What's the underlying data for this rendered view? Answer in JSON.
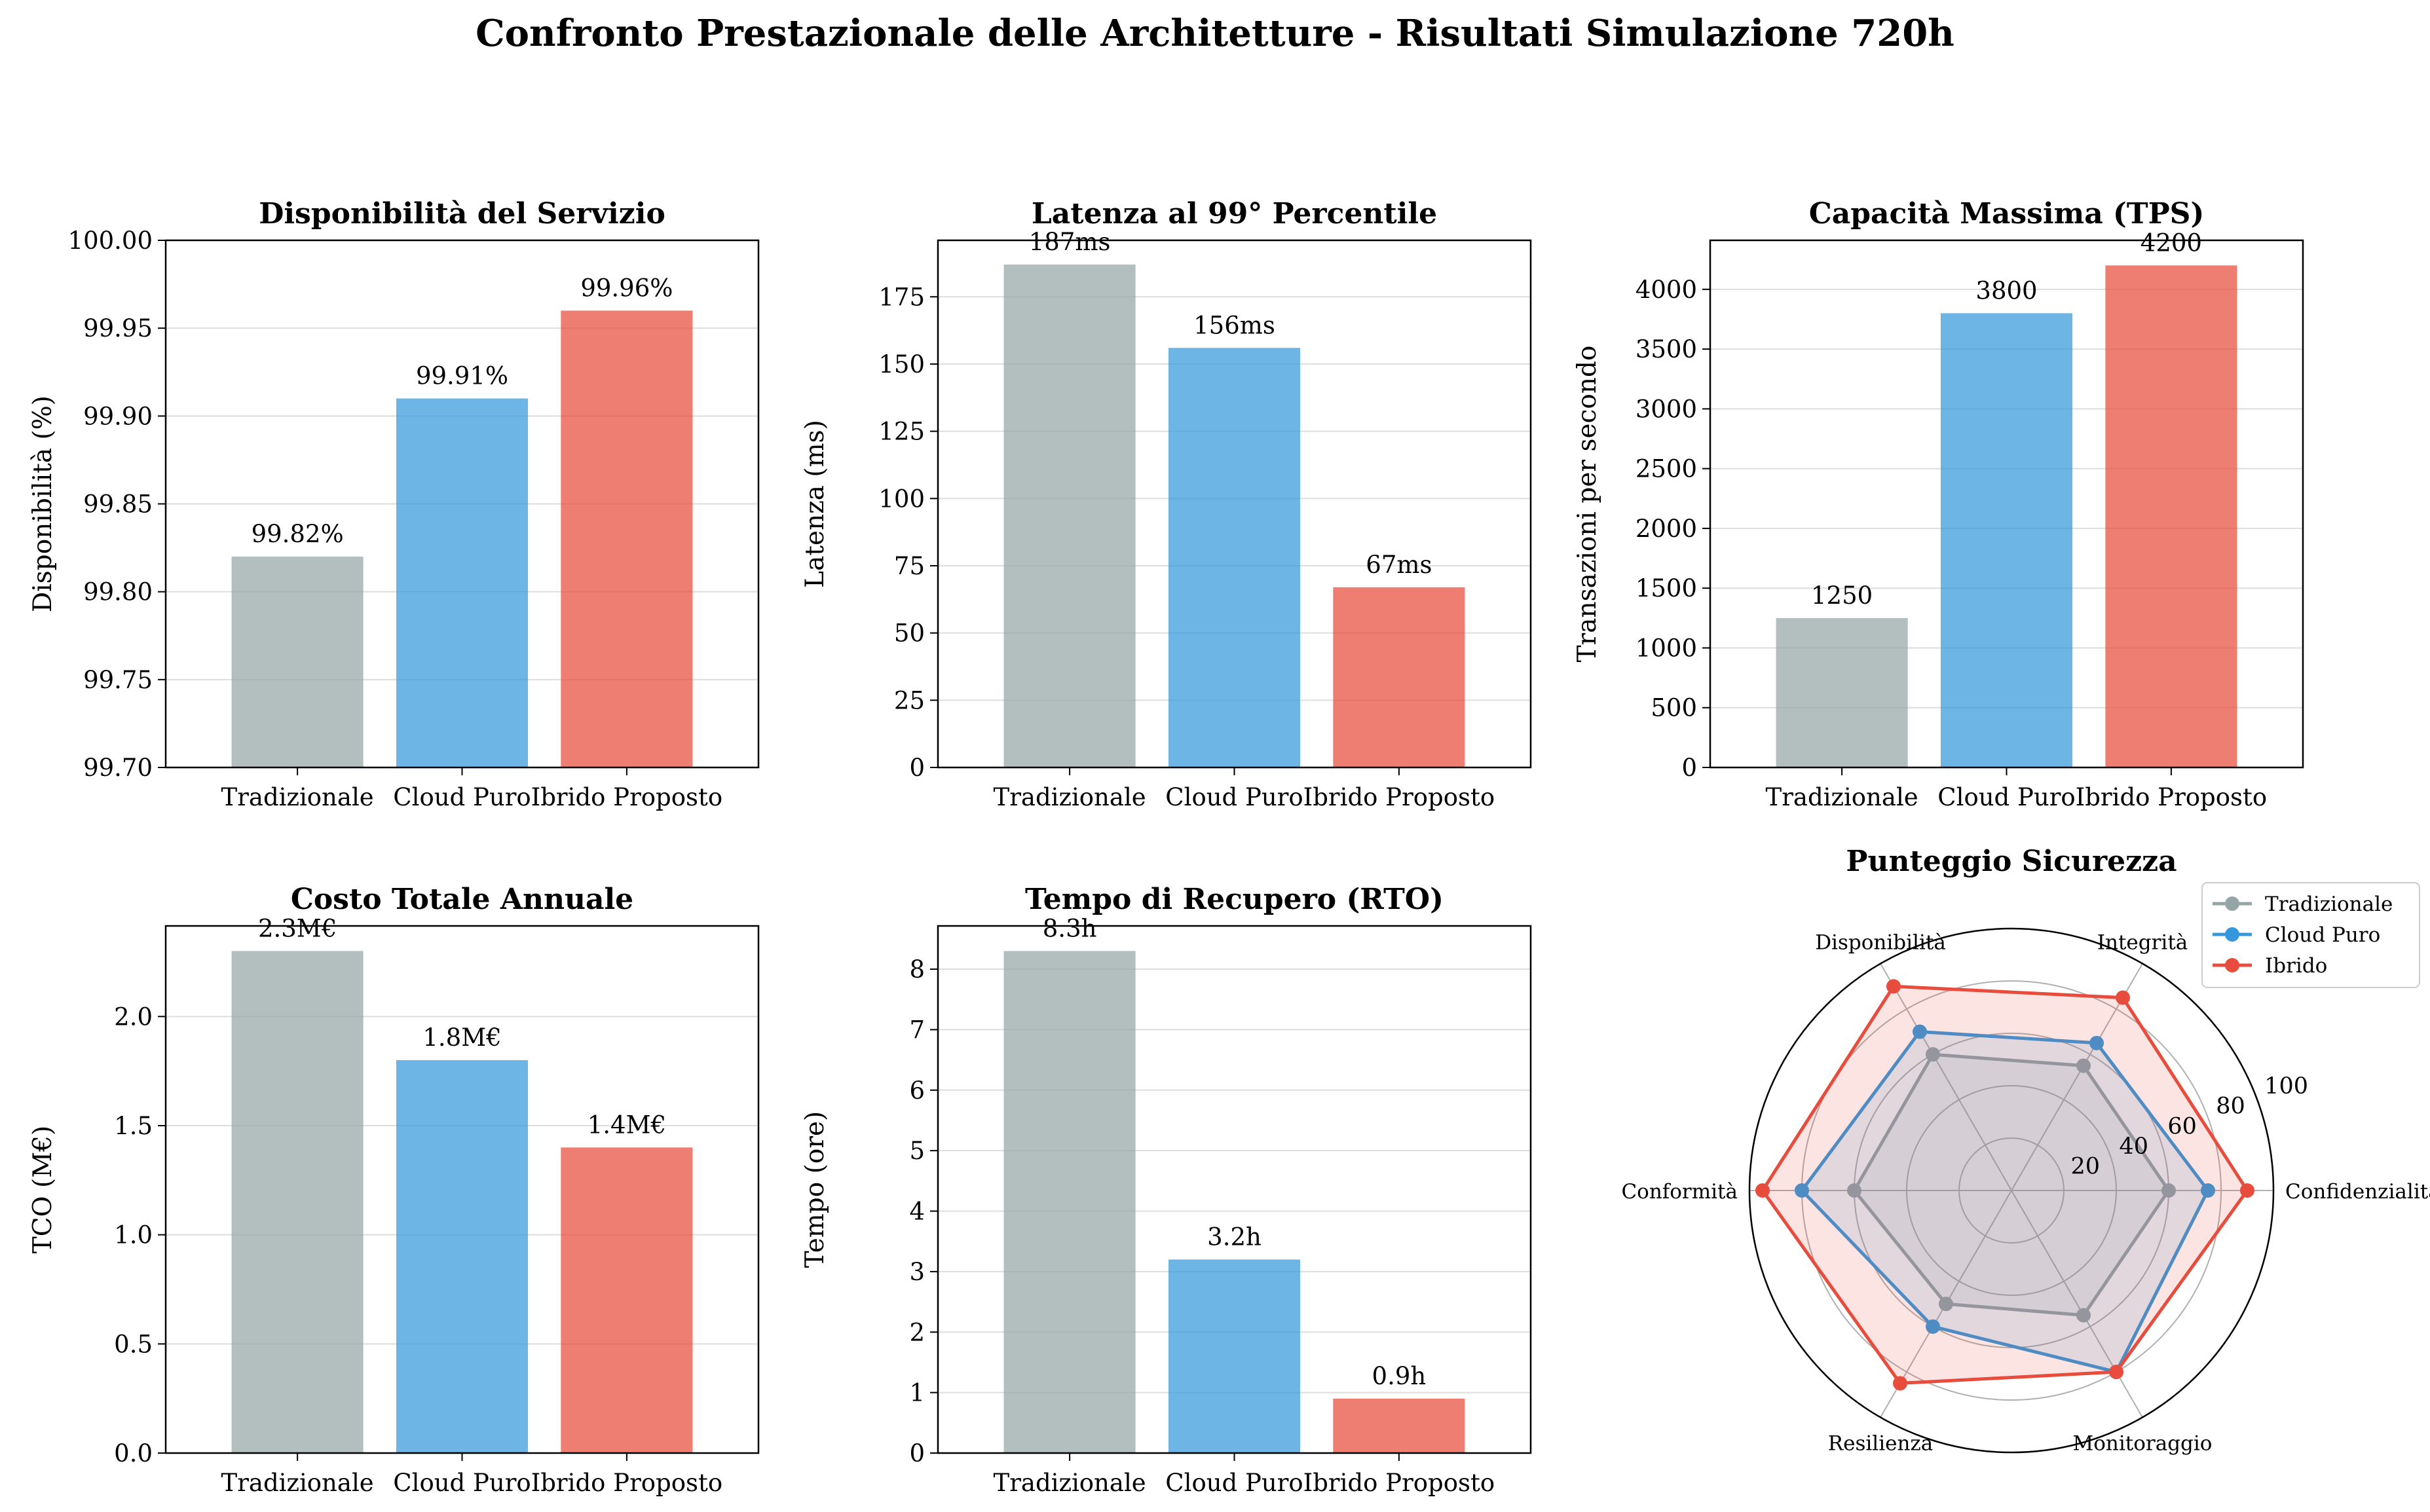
{
  "suptitle": "Confronto Prestazionale delle Architetture - Risultati Simulazione 720h",
  "colors": {
    "tradizionale": "#95a5a6",
    "cloud": "#3498db",
    "ibrido": "#e74c3c",
    "grid": "#dddddd"
  },
  "chart_data": [
    {
      "type": "bar",
      "title": "Disponibilità del Servizio",
      "categories": [
        "Tradizionale",
        "Cloud Puro",
        "Ibrido Proposto"
      ],
      "values": [
        99.82,
        99.91,
        99.96
      ],
      "value_labels": [
        "99.82%",
        "99.91%",
        "99.96%"
      ],
      "ylabel": "Disponibilità (%)",
      "ylim": [
        99.7,
        100.0
      ],
      "yticks": [
        99.7,
        99.75,
        99.8,
        99.85,
        99.9,
        99.95,
        100.0
      ],
      "ytick_labels": [
        "99.70",
        "99.75",
        "99.80",
        "99.85",
        "99.90",
        "99.95",
        "100.00"
      ],
      "grid": "y"
    },
    {
      "type": "bar",
      "title": "Latenza al 99° Percentile",
      "categories": [
        "Tradizionale",
        "Cloud Puro",
        "Ibrido Proposto"
      ],
      "values": [
        187,
        156,
        67
      ],
      "value_labels": [
        "187ms",
        "156ms",
        "67ms"
      ],
      "ylabel": "Latenza (ms)",
      "ylim": [
        0,
        196
      ],
      "yticks": [
        0,
        25,
        50,
        75,
        100,
        125,
        150,
        175
      ],
      "ytick_labels": [
        "0",
        "25",
        "50",
        "75",
        "100",
        "125",
        "150",
        "175"
      ],
      "grid": "y"
    },
    {
      "type": "bar",
      "title": "Capacità Massima (TPS)",
      "categories": [
        "Tradizionale",
        "Cloud Puro",
        "Ibrido Proposto"
      ],
      "values": [
        1250,
        3800,
        4200
      ],
      "value_labels": [
        "1250",
        "3800",
        "4200"
      ],
      "ylabel": "Transazioni per secondo",
      "ylim": [
        0,
        4410
      ],
      "yticks": [
        0,
        500,
        1000,
        1500,
        2000,
        2500,
        3000,
        3500,
        4000
      ],
      "ytick_labels": [
        "0",
        "500",
        "1000",
        "1500",
        "2000",
        "2500",
        "3000",
        "3500",
        "4000"
      ],
      "grid": "y"
    },
    {
      "type": "bar",
      "title": "Costo Totale Annuale",
      "categories": [
        "Tradizionale",
        "Cloud Puro",
        "Ibrido Proposto"
      ],
      "values": [
        2.3,
        1.8,
        1.4
      ],
      "value_labels": [
        "2.3M€",
        "1.8M€",
        "1.4M€"
      ],
      "ylabel": "TCO (M€)",
      "ylim": [
        0,
        2.415
      ],
      "yticks": [
        0,
        0.5,
        1.0,
        1.5,
        2.0
      ],
      "ytick_labels": [
        "0.0",
        "0.5",
        "1.0",
        "1.5",
        "2.0"
      ],
      "grid": "y"
    },
    {
      "type": "bar",
      "title": "Tempo di Recupero (RTO)",
      "categories": [
        "Tradizionale",
        "Cloud Puro",
        "Ibrido Proposto"
      ],
      "values": [
        8.3,
        3.2,
        0.9
      ],
      "value_labels": [
        "8.3h",
        "3.2h",
        "0.9h"
      ],
      "ylabel": "Tempo (ore)",
      "ylim": [
        0,
        8.715
      ],
      "yticks": [
        0,
        1,
        2,
        3,
        4,
        5,
        6,
        7,
        8
      ],
      "ytick_labels": [
        "0",
        "1",
        "2",
        "3",
        "4",
        "5",
        "6",
        "7",
        "8"
      ],
      "grid": "y"
    },
    {
      "type": "radar",
      "title": "Punteggio Sicurezza",
      "axes": [
        "Confidenzialità",
        "Integrità",
        "Disponibilità",
        "Conformità",
        "Resilienza",
        "Monitoraggio"
      ],
      "rlim": [
        0,
        100
      ],
      "rticks": [
        20,
        40,
        60,
        80,
        100
      ],
      "rtick_labels": [
        "20",
        "40",
        "60",
        "80",
        "100"
      ],
      "legend_position": "upper-right-outside",
      "series": [
        {
          "name": "Tradizionale",
          "values": [
            60,
            55,
            60,
            60,
            50,
            55
          ]
        },
        {
          "name": "Cloud Puro",
          "values": [
            75,
            65,
            70,
            80,
            60,
            80
          ]
        },
        {
          "name": "Ibrido",
          "values": [
            90,
            85,
            90,
            95,
            85,
            80
          ]
        }
      ]
    }
  ]
}
